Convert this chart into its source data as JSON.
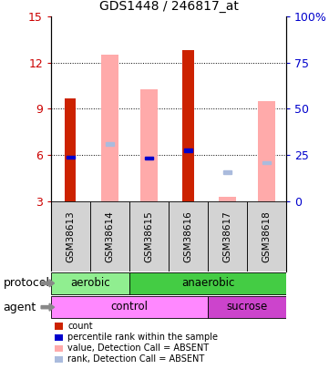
{
  "title": "GDS1448 / 246817_at",
  "samples": [
    "GSM38613",
    "GSM38614",
    "GSM38615",
    "GSM38616",
    "GSM38617",
    "GSM38618"
  ],
  "ylim_left": [
    3,
    15
  ],
  "ylim_right": [
    0,
    100
  ],
  "yticks_left": [
    3,
    6,
    9,
    12,
    15
  ],
  "yticks_right": [
    0,
    25,
    50,
    75,
    100
  ],
  "red_bars": [
    9.7,
    null,
    null,
    12.8,
    null,
    null
  ],
  "red_bar_bottom": [
    3,
    null,
    null,
    3,
    null,
    null
  ],
  "pink_bars": [
    null,
    12.5,
    10.3,
    null,
    3.3,
    9.5
  ],
  "pink_bar_bottom": [
    null,
    3,
    3,
    null,
    3,
    3
  ],
  "blue_squares": [
    5.85,
    null,
    5.8,
    6.3,
    null,
    null
  ],
  "light_blue_squares": [
    null,
    6.7,
    null,
    null,
    4.9,
    5.5
  ],
  "protocol_groups": [
    {
      "label": "aerobic",
      "start": 0,
      "end": 2,
      "color": "#90ee90"
    },
    {
      "label": "anaerobic",
      "start": 2,
      "end": 6,
      "color": "#44cc44"
    }
  ],
  "agent_groups": [
    {
      "label": "control",
      "start": 0,
      "end": 4,
      "color": "#ff88ff"
    },
    {
      "label": "sucrose",
      "start": 4,
      "end": 6,
      "color": "#cc44cc"
    }
  ],
  "protocol_label": "protocol",
  "agent_label": "agent",
  "legend_items": [
    {
      "label": "count",
      "color": "#cc2200"
    },
    {
      "label": "percentile rank within the sample",
      "color": "#0000cc"
    },
    {
      "label": "value, Detection Call = ABSENT",
      "color": "#ffaaaa"
    },
    {
      "label": "rank, Detection Call = ABSENT",
      "color": "#aabbdd"
    }
  ],
  "red_color": "#cc2200",
  "pink_color": "#ffaaaa",
  "blue_color": "#0000cc",
  "light_blue_color": "#aabbdd",
  "left_tick_color": "#cc0000",
  "right_tick_color": "#0000cc"
}
